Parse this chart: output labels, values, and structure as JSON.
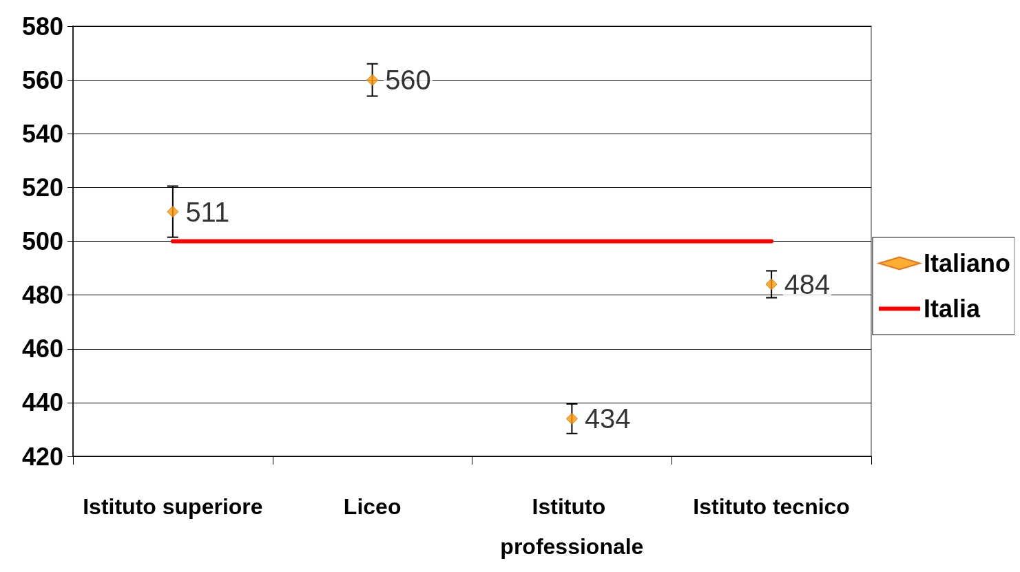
{
  "chart_data": {
    "type": "scatter",
    "categories": [
      "Istituto superiore",
      "Liceo",
      "Istituto professionale",
      "Istituto tecnico"
    ],
    "series": [
      {
        "name": "Italiano",
        "color": "#ff9900",
        "values": [
          511,
          560,
          434,
          484
        ],
        "errors": [
          9.5,
          6,
          5.5,
          5
        ],
        "marker": "diamond",
        "data_labels": true
      },
      {
        "name": "Italia",
        "type": "line",
        "color": "#ff0000",
        "values": [
          500,
          500,
          500,
          500
        ],
        "marker": "none"
      }
    ],
    "ylim": [
      420,
      580
    ],
    "yticks": [
      420,
      440,
      460,
      480,
      500,
      520,
      540,
      560,
      580
    ],
    "grid": "y",
    "legend": "right"
  }
}
